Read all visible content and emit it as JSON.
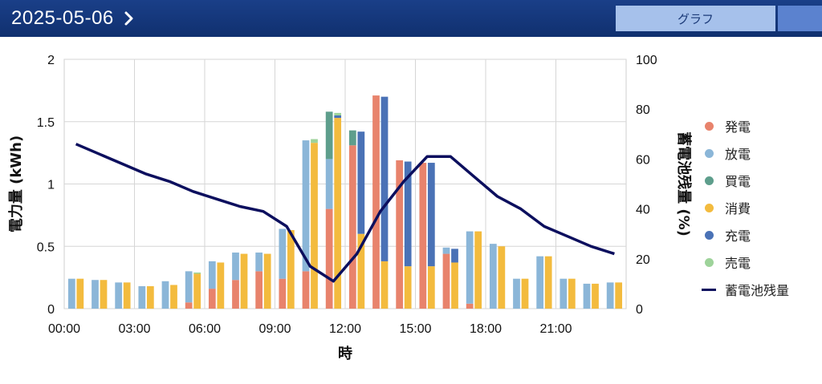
{
  "header": {
    "date": "2025-05-06",
    "tab_graph_label": "グラフ"
  },
  "colors": {
    "header_bg": "#122f6c",
    "series": {
      "hatsuden": "#e8836c",
      "hoden": "#8bb6d8",
      "baiden": "#5e9e8c",
      "shohi": "#f3bb3e",
      "juden": "#4a72b6",
      "uriden": "#9ed39a",
      "zanryo": "#0c0f5e"
    }
  },
  "chart_data": {
    "type": "bar",
    "stacked": true,
    "xlabel": "時",
    "ylabel": "電力量 (kWh)",
    "y2label": "蓄電池残量 (%)",
    "ylim": [
      0,
      2
    ],
    "y2lim": [
      0,
      100
    ],
    "yticks": [
      "0",
      "0.5",
      "1",
      "1.5",
      "2"
    ],
    "y2ticks": [
      "0",
      "20",
      "40",
      "60",
      "80",
      "100"
    ],
    "xticks": [
      "00:00",
      "03:00",
      "06:00",
      "09:00",
      "12:00",
      "15:00",
      "18:00",
      "21:00"
    ],
    "grid": true,
    "legend_position": "right",
    "hours": [
      0,
      1,
      2,
      3,
      4,
      5,
      6,
      7,
      8,
      9,
      10,
      11,
      12,
      13,
      14,
      15,
      16,
      17,
      18,
      19,
      20,
      21,
      22,
      23
    ],
    "supply_series": [
      {
        "key": "hatsuden",
        "name": "発電",
        "values": [
          0,
          0,
          0,
          0,
          0,
          0.05,
          0.16,
          0.23,
          0.3,
          0.24,
          0.3,
          0.8,
          1.31,
          1.71,
          1.19,
          1.17,
          0.44,
          0.04,
          0,
          0,
          0,
          0,
          0,
          0
        ]
      },
      {
        "key": "hoden",
        "name": "放電",
        "values": [
          0.24,
          0.23,
          0.21,
          0.18,
          0.22,
          0.25,
          0.22,
          0.22,
          0.15,
          0.4,
          1.05,
          0.4,
          0,
          0,
          0,
          0,
          0.05,
          0.58,
          0.52,
          0.24,
          0.42,
          0.24,
          0.2,
          0.21
        ]
      },
      {
        "key": "baiden",
        "name": "買電",
        "values": [
          0,
          0,
          0,
          0,
          0,
          0,
          0,
          0,
          0,
          0,
          0,
          0.38,
          0.12,
          0,
          0,
          0,
          0,
          0,
          0,
          0,
          0,
          0,
          0,
          0
        ]
      }
    ],
    "demand_series": [
      {
        "key": "shohi",
        "name": "消費",
        "values": [
          0.24,
          0.23,
          0.21,
          0.18,
          0.19,
          0.28,
          0.37,
          0.44,
          0.44,
          0.63,
          1.33,
          1.53,
          0.6,
          0.38,
          0.34,
          0.34,
          0.37,
          0.62,
          0.5,
          0.24,
          0.42,
          0.24,
          0.2,
          0.21
        ]
      },
      {
        "key": "juden",
        "name": "充電",
        "values": [
          0,
          0,
          0,
          0,
          0,
          0,
          0,
          0,
          0,
          0,
          0,
          0.02,
          0.82,
          1.32,
          0.84,
          0.83,
          0.11,
          0,
          0,
          0,
          0,
          0,
          0,
          0
        ]
      },
      {
        "key": "uriden",
        "name": "売電",
        "values": [
          0,
          0,
          0,
          0,
          0,
          0.01,
          0,
          0,
          0,
          0,
          0.03,
          0.02,
          0,
          0,
          0,
          0,
          0,
          0,
          0,
          0,
          0,
          0,
          0,
          0
        ]
      }
    ],
    "line_series": {
      "key": "zanryo",
      "name": "蓄電池残量",
      "values": [
        66,
        62,
        58,
        54,
        51,
        47,
        44,
        41,
        39,
        33,
        17,
        11,
        22,
        39,
        51,
        61,
        61,
        53,
        45,
        40,
        33,
        29,
        25,
        22
      ]
    }
  },
  "legend": {
    "items": [
      {
        "label": "発電",
        "color": "#e8836c",
        "kind": "dot"
      },
      {
        "label": "放電",
        "color": "#8bb6d8",
        "kind": "dot"
      },
      {
        "label": "買電",
        "color": "#5e9e8c",
        "kind": "dot"
      },
      {
        "label": "消費",
        "color": "#f3bb3e",
        "kind": "dot"
      },
      {
        "label": "充電",
        "color": "#4a72b6",
        "kind": "dot"
      },
      {
        "label": "売電",
        "color": "#9ed39a",
        "kind": "dot"
      },
      {
        "label": "蓄電池残量",
        "color": "#0c0f5e",
        "kind": "line"
      }
    ]
  }
}
